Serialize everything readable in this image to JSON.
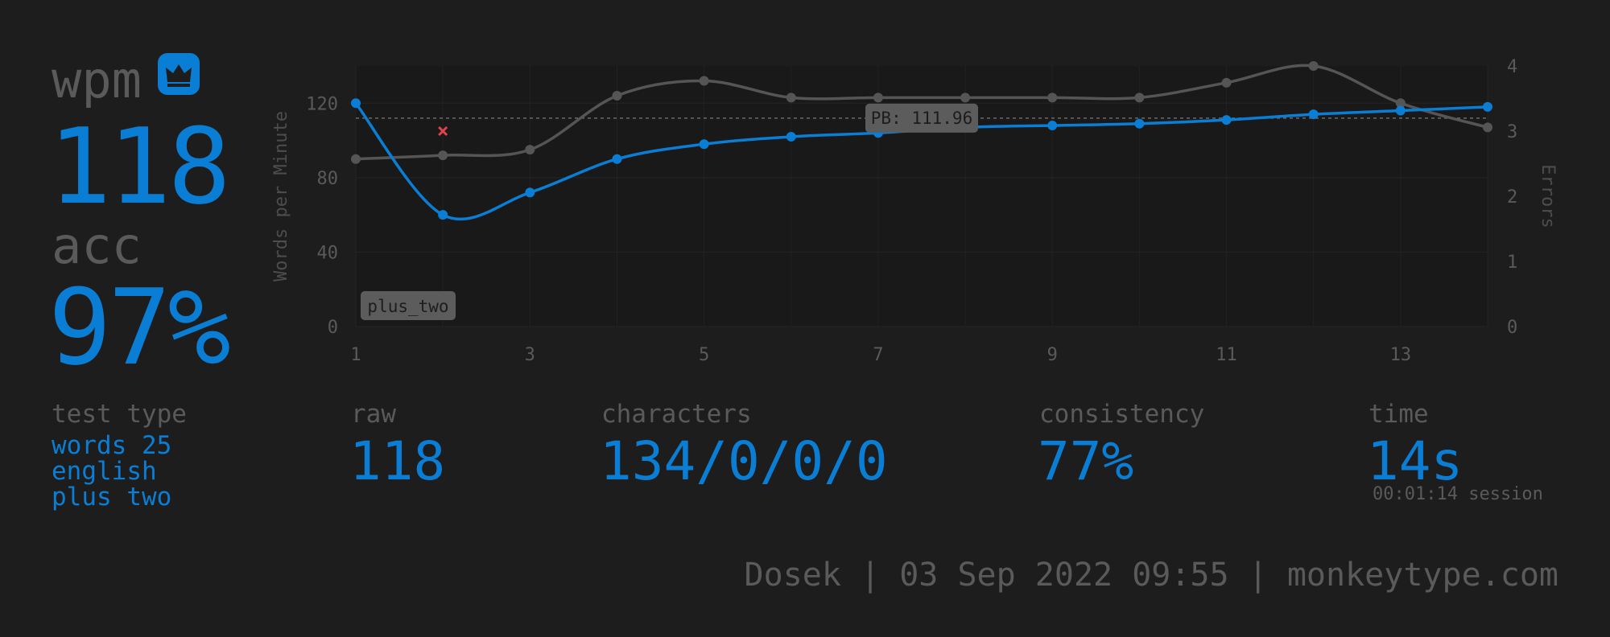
{
  "result": {
    "wpm_label": "wpm",
    "wpm": "118",
    "acc_label": "acc",
    "acc": "97%"
  },
  "details": {
    "test_type_label": "test type",
    "test_type": [
      "words 25",
      "english",
      "plus two"
    ],
    "raw_label": "raw",
    "raw": "118",
    "characters_label": "characters",
    "characters": "134/0/0/0",
    "consistency_label": "consistency",
    "consistency": "77%",
    "time_label": "time",
    "time": "14s",
    "session": "00:01:14 session"
  },
  "footer": "Dosek | 03 Sep 2022 09:55 | monkeytype.com",
  "icons": [
    "crown-icon"
  ],
  "colors": {
    "background": "#1d1d1d",
    "accent": "#0a7ed4",
    "muted": "#5a5a5a",
    "raw_line": "#555555",
    "error_mark": "#e0434a"
  },
  "chart_data": {
    "type": "line",
    "x": [
      1,
      2,
      3,
      4,
      5,
      6,
      7,
      8,
      9,
      10,
      11,
      12,
      13,
      14
    ],
    "x_ticks": [
      1,
      3,
      5,
      7,
      9,
      11,
      13
    ],
    "ylabel": "Words per Minute",
    "y2label": "Errors",
    "ylim": [
      0,
      140
    ],
    "y_ticks": [
      0,
      40,
      80,
      120
    ],
    "y2lim": [
      0,
      4
    ],
    "y2_ticks": [
      0,
      1,
      2,
      3,
      4
    ],
    "series": [
      {
        "role": "wpm",
        "axis": "left",
        "color": "#0a7ed4",
        "values": [
          120,
          60,
          72,
          90,
          98,
          102,
          104,
          107,
          108,
          109,
          111,
          114,
          116,
          118
        ]
      },
      {
        "role": "raw",
        "axis": "left",
        "color": "#555555",
        "values": [
          90,
          92,
          95,
          124,
          132,
          123,
          123,
          123,
          123,
          123,
          131,
          140,
          120,
          107
        ]
      }
    ],
    "errors": [
      {
        "x": 2,
        "errors": 3
      }
    ],
    "pb_line": {
      "value": 111.96,
      "label": "PB: 111.96",
      "label_x": 7.5
    },
    "annotation": "plus_two",
    "grid": true
  }
}
